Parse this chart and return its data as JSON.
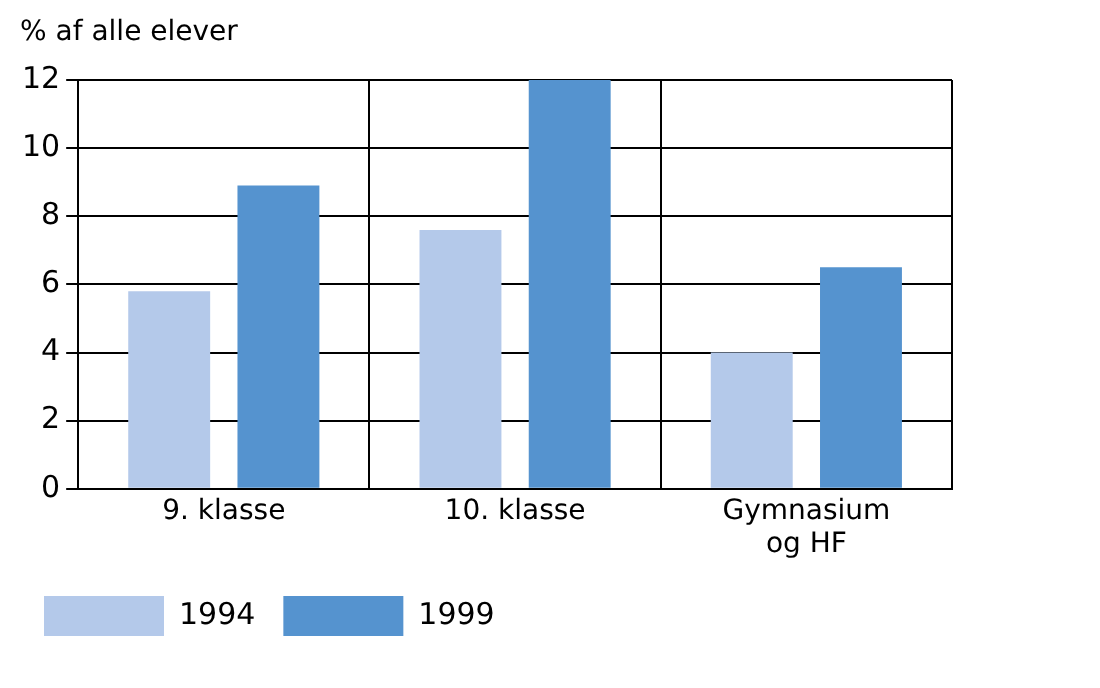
{
  "chart_data": {
    "type": "bar",
    "ylabel": "% af alle elever",
    "categories": [
      "9. klasse",
      "10. klasse",
      "Gymnasium og HF"
    ],
    "series": [
      {
        "name": "1994",
        "color": "#b4c9ea",
        "values": [
          5.8,
          7.6,
          4.0
        ]
      },
      {
        "name": "1999",
        "color": "#5593cf",
        "values": [
          8.9,
          12,
          6.5
        ]
      }
    ],
    "ylim": [
      0,
      12
    ],
    "yticks": [
      0,
      2,
      4,
      6,
      8,
      10,
      12
    ],
    "grid": true,
    "legend": "bottom left"
  }
}
